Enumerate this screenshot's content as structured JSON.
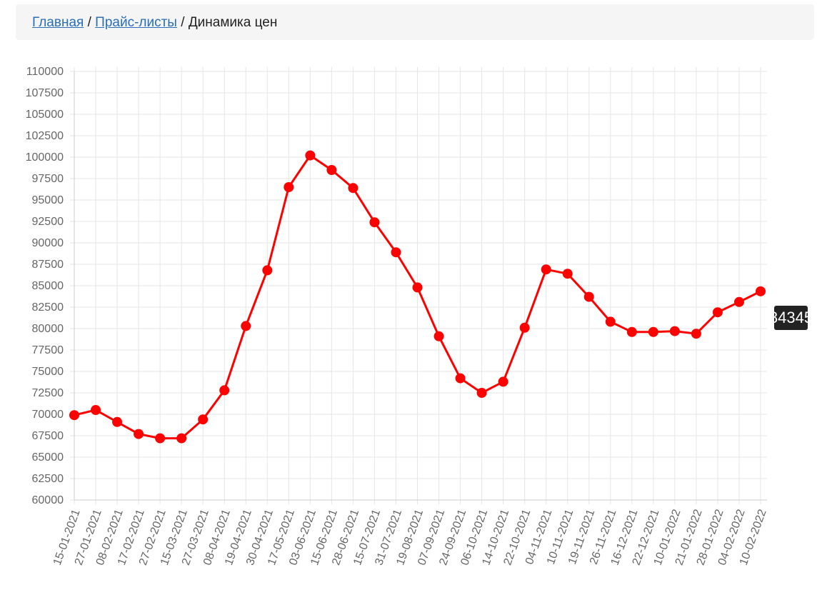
{
  "breadcrumb": {
    "items": [
      "Главная",
      "Прайс-листы",
      "Динамика цен"
    ],
    "separator": "/"
  },
  "chart_data": {
    "type": "line",
    "color": "#ff0000",
    "categories": [
      "15-01-2021",
      "27-01-2021",
      "08-02-2021",
      "17-02-2021",
      "27-02-2021",
      "15-03-2021",
      "27-03-2021",
      "08-04-2021",
      "19-04-2021",
      "30-04-2021",
      "17-05-2021",
      "03-06-2021",
      "15-06-2021",
      "28-06-2021",
      "15-07-2021",
      "31-07-2021",
      "19-08-2021",
      "07-09-2021",
      "24-09-2021",
      "06-10-2021",
      "14-10-2021",
      "22-10-2021",
      "04-11-2021",
      "10-11-2021",
      "19-11-2021",
      "26-11-2021",
      "16-12-2021",
      "22-12-2021",
      "10-01-2022",
      "21-01-2022",
      "28-01-2022",
      "04-02-2022",
      "10-02-2022"
    ],
    "values": [
      69900,
      70500,
      69100,
      67700,
      67200,
      67200,
      69400,
      72800,
      80300,
      86800,
      96500,
      100200,
      98500,
      96400,
      92400,
      88900,
      84800,
      79100,
      74200,
      72500,
      73800,
      80100,
      86900,
      86400,
      83700,
      80800,
      79600,
      79600,
      79700,
      79400,
      81900,
      83100,
      84345
    ],
    "ylim": [
      60000,
      110000
    ],
    "yticks": [
      60000,
      62500,
      65000,
      67500,
      70000,
      72500,
      75000,
      77500,
      80000,
      82500,
      85000,
      87500,
      90000,
      92500,
      95000,
      97500,
      100000,
      102500,
      105000,
      107500,
      110000
    ],
    "grid": true
  }
}
